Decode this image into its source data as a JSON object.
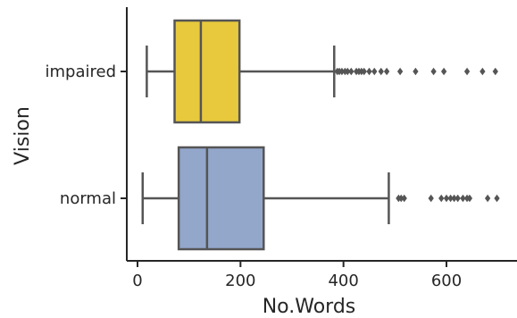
{
  "chart_data": {
    "type": "box",
    "orientation": "horizontal",
    "xlabel": "No.Words",
    "ylabel": "Vision",
    "xlim": [
      -20,
      720
    ],
    "x_ticks": [
      0,
      200,
      400,
      600
    ],
    "categories": [
      "impaired",
      "normal"
    ],
    "series": [
      {
        "category": "impaired",
        "color": "#e8c93d",
        "whisker_low": 18,
        "q1": 72,
        "median": 123,
        "q3": 198,
        "whisker_high": 382,
        "outliers": [
          388,
          392,
          397,
          403,
          408,
          415,
          425,
          430,
          435,
          440,
          450,
          460,
          473,
          484,
          510,
          540,
          575,
          595,
          640,
          670,
          695
        ]
      },
      {
        "category": "normal",
        "color": "#93a7cb",
        "whisker_low": 10,
        "q1": 80,
        "median": 135,
        "q3": 245,
        "whisker_high": 488,
        "outliers": [
          507,
          512,
          518,
          570,
          590,
          600,
          608,
          615,
          622,
          632,
          640,
          645,
          680,
          698
        ]
      }
    ],
    "grid": false,
    "legend": "none",
    "line_color": "#555555",
    "axis_color": "#262626"
  }
}
